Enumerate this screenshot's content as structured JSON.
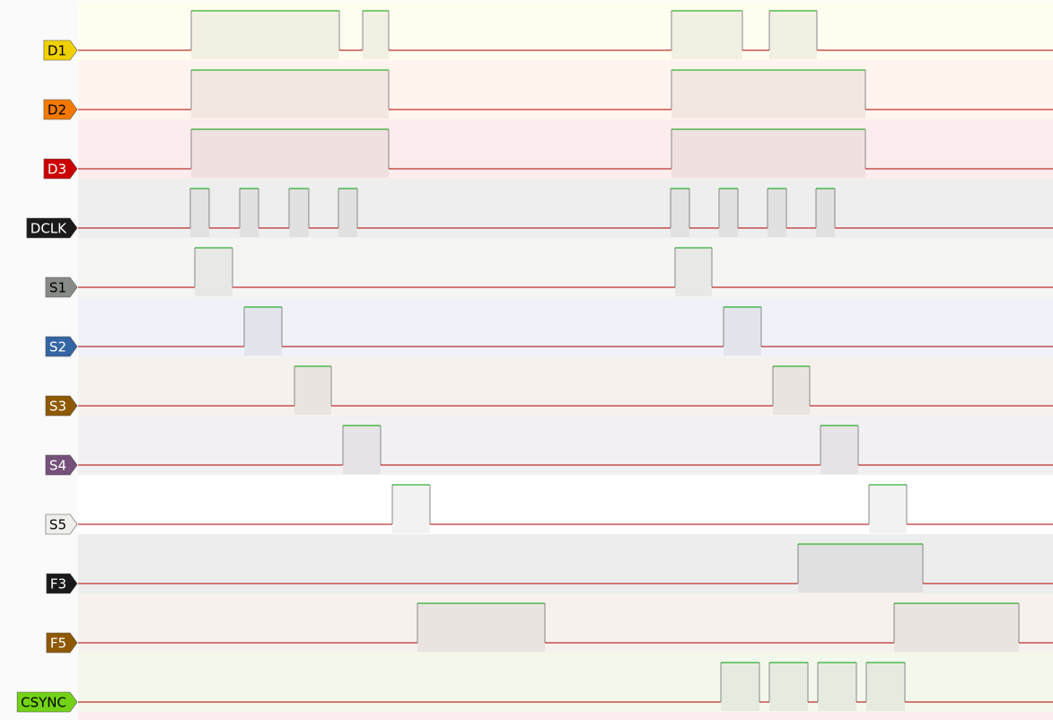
{
  "channels": [
    {
      "label": "D1",
      "color": "#f0d000"
    },
    {
      "label": "D2",
      "color": "#f57900"
    },
    {
      "label": "D3",
      "color": "#cc0000"
    },
    {
      "label": "DCLK",
      "color": "#1a1a1a"
    },
    {
      "label": "S1",
      "color": "#888a85"
    },
    {
      "label": "S2",
      "color": "#3465a4"
    },
    {
      "label": "S3",
      "color": "#8f5902"
    },
    {
      "label": "S4",
      "color": "#75507b"
    },
    {
      "label": "S5",
      "color": "#eeeeec"
    },
    {
      "label": "F3",
      "color": "#1a1a1a"
    },
    {
      "label": "F5",
      "color": "#8f5902"
    },
    {
      "label": "CSYNC",
      "color": "#73d216"
    }
  ]
}
